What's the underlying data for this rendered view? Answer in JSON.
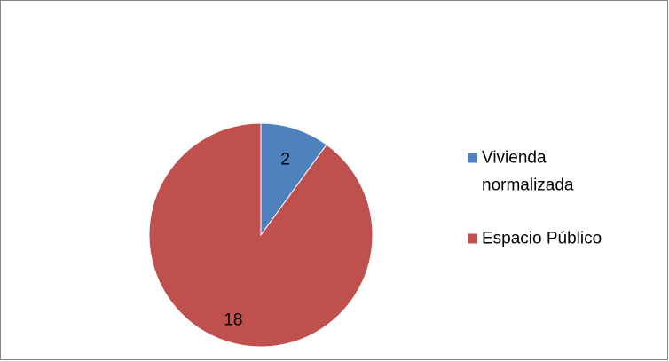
{
  "chart_data": {
    "type": "pie",
    "categories": [
      "Vivienda normalizada",
      "Espacio Público"
    ],
    "values": [
      2,
      18
    ],
    "data_labels": [
      "2",
      "18"
    ],
    "colors": [
      "#4F81BD",
      "#C0504D"
    ],
    "legend": {
      "placement": "right",
      "entries": [
        {
          "lines": [
            "Vivienda",
            "normalizada"
          ],
          "color": "#4F81BD"
        },
        {
          "lines": [
            "Espacio Público"
          ],
          "color": "#C0504D"
        }
      ]
    },
    "title": ""
  }
}
